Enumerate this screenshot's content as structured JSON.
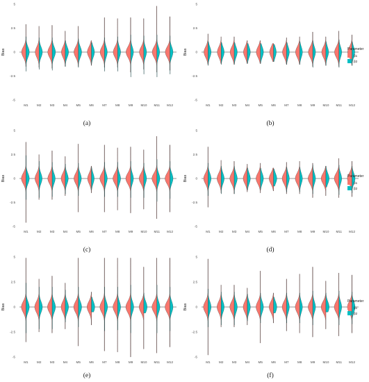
{
  "colors": {
    "b1": "#F8766D",
    "b2": "#00BFC4"
  },
  "legend": {
    "title": "Parameter",
    "b1": "β1",
    "b2": "β2"
  },
  "captions": [
    "(a)",
    "(b)",
    "(c)",
    "(d)",
    "(e)",
    "(f)"
  ],
  "chart_data": [
    {
      "panel": "(a)",
      "type": "violin",
      "ylabel": "Bias",
      "ylim": [
        -5,
        5
      ],
      "yticks": [
        "5",
        "2.5",
        "0",
        "-2.5",
        "-5"
      ],
      "categories": [
        "M1",
        "M2",
        "M3",
        "M4",
        "M5",
        "M6",
        "M7",
        "M8",
        "M9",
        "M10",
        "M11",
        "M12"
      ],
      "series": [
        {
          "name": "β1",
          "width": [
            0.8,
            0.7,
            0.8,
            0.7,
            0.8,
            0.75,
            0.8,
            0.8,
            0.85,
            0.8,
            0.85,
            0.85
          ],
          "min": [
            -1.5,
            -1.6,
            -1.7,
            -1.5,
            -1.5,
            -1.4,
            -1.6,
            -1.6,
            -2.1,
            -1.8,
            -2.1,
            -1.9
          ],
          "max": [
            2.9,
            2.7,
            2.8,
            2.2,
            2.7,
            1.2,
            3.6,
            3.5,
            3.6,
            3.5,
            4.8,
            3.7
          ]
        },
        {
          "name": "β2",
          "width": [
            0.6,
            0.6,
            0.6,
            0.6,
            0.6,
            0.55,
            0.5,
            0.55,
            0.5,
            0.5,
            0.5,
            0.55
          ],
          "min": [
            -2.0,
            -1.8,
            -1.9,
            -1.5,
            -1.6,
            -1.3,
            -2.0,
            -2.0,
            -2.6,
            -2.3,
            -2.6,
            -2.3
          ],
          "max": [
            1.6,
            1.5,
            1.5,
            1.2,
            1.4,
            1.0,
            1.5,
            1.6,
            1.8,
            1.7,
            1.8,
            1.7
          ]
        }
      ]
    },
    {
      "panel": "(b)",
      "type": "violin",
      "ylabel": "Bias",
      "ylim": [
        -5,
        5
      ],
      "yticks": [
        "5",
        "2.5",
        "0",
        "-2.5",
        "-5"
      ],
      "categories": [
        "M1",
        "M2",
        "M3",
        "M4",
        "M5",
        "M6",
        "M7",
        "M8",
        "M9",
        "M10",
        "M11",
        "M12"
      ],
      "series": [
        {
          "name": "β1",
          "width": [
            0.75,
            0.7,
            0.75,
            0.7,
            0.75,
            0.7,
            0.75,
            0.75,
            0.8,
            0.75,
            0.8,
            0.8
          ],
          "min": [
            -1.3,
            -1.2,
            -1.3,
            -1.2,
            -1.2,
            -1.0,
            -1.3,
            -1.3,
            -1.5,
            -1.4,
            -1.5,
            -1.4
          ],
          "max": [
            1.9,
            1.6,
            1.6,
            1.2,
            1.2,
            0.9,
            1.5,
            1.6,
            2.1,
            1.6,
            2.2,
            1.8
          ]
        },
        {
          "name": "β2",
          "width": [
            0.55,
            0.55,
            0.55,
            0.55,
            0.55,
            0.5,
            0.5,
            0.5,
            0.5,
            0.5,
            0.5,
            0.5
          ],
          "min": [
            -1.4,
            -1.3,
            -1.3,
            -1.2,
            -1.2,
            -1.0,
            -1.3,
            -1.3,
            -1.6,
            -1.4,
            -1.6,
            -1.4
          ],
          "max": [
            1.1,
            1.0,
            1.0,
            0.9,
            0.9,
            0.8,
            1.0,
            1.1,
            1.2,
            1.1,
            1.3,
            1.1
          ]
        }
      ]
    },
    {
      "panel": "(c)",
      "type": "violin",
      "ylabel": "Bias",
      "ylim": [
        -5,
        5
      ],
      "yticks": [
        "5",
        "2.5",
        "0",
        "-2.5",
        "-5"
      ],
      "categories": [
        "M1",
        "M2",
        "M3",
        "M4",
        "M5",
        "M6",
        "M7",
        "M8",
        "M9",
        "M10",
        "M11",
        "M12"
      ],
      "series": [
        {
          "name": "β1",
          "width": [
            0.85,
            0.75,
            0.8,
            0.75,
            0.8,
            0.7,
            0.85,
            0.85,
            0.9,
            0.85,
            0.9,
            0.9
          ],
          "min": [
            -4.6,
            -2.2,
            -2.2,
            -1.8,
            -3.5,
            -1.5,
            -3.5,
            -3.3,
            -3.6,
            -3.2,
            -4.2,
            -3.5
          ],
          "max": [
            3.8,
            2.5,
            2.9,
            2.3,
            3.6,
            1.3,
            3.5,
            3.2,
            3.3,
            3.0,
            4.4,
            3.5
          ]
        },
        {
          "name": "β2",
          "width": [
            0.6,
            0.55,
            0.55,
            0.55,
            0.55,
            0.5,
            0.5,
            0.55,
            0.5,
            0.5,
            0.55,
            0.55
          ],
          "min": [
            -2.2,
            -2.0,
            -1.9,
            -1.6,
            -1.8,
            -1.2,
            -1.9,
            -1.9,
            -2.0,
            -2.0,
            -2.4,
            -2.1
          ],
          "max": [
            2.4,
            1.8,
            1.7,
            1.5,
            1.6,
            1.2,
            1.7,
            1.7,
            1.8,
            1.6,
            2.0,
            1.8
          ]
        }
      ]
    },
    {
      "panel": "(d)",
      "type": "violin",
      "ylabel": "Bias",
      "ylim": [
        -5,
        5
      ],
      "yticks": [
        "5",
        "2.5",
        "0",
        "-2.5",
        "-5"
      ],
      "categories": [
        "M1",
        "M2",
        "M3",
        "M4",
        "M5",
        "M6",
        "M7",
        "M8",
        "M9",
        "M10",
        "M11",
        "M12"
      ],
      "series": [
        {
          "name": "β1",
          "width": [
            0.8,
            0.75,
            0.8,
            0.75,
            0.8,
            0.8,
            0.8,
            0.8,
            0.85,
            0.85,
            0.85,
            0.85
          ],
          "min": [
            -3.0,
            -1.5,
            -1.6,
            -1.4,
            -1.5,
            -1.3,
            -1.6,
            -1.6,
            -2.0,
            -1.8,
            -2.0,
            -1.9
          ],
          "max": [
            3.3,
            1.9,
            1.8,
            1.5,
            1.6,
            1.1,
            1.7,
            1.8,
            1.6,
            1.3,
            2.1,
            1.8
          ]
        },
        {
          "name": "β2",
          "width": [
            0.55,
            0.55,
            0.55,
            0.55,
            0.55,
            0.6,
            0.5,
            0.5,
            0.5,
            0.6,
            0.5,
            0.55
          ],
          "min": [
            -1.8,
            -1.6,
            -1.6,
            -1.2,
            -1.2,
            -0.8,
            -1.4,
            -1.4,
            -1.6,
            -0.9,
            -1.7,
            -1.5
          ],
          "max": [
            1.6,
            1.3,
            1.3,
            1.1,
            1.1,
            1.0,
            1.2,
            1.2,
            1.4,
            1.3,
            1.4,
            1.3
          ]
        }
      ]
    },
    {
      "panel": "(e)",
      "type": "violin",
      "ylabel": "Bias",
      "ylim": [
        -5,
        5
      ],
      "yticks": [
        "5",
        "2.5",
        "0",
        "-2.5",
        "-5"
      ],
      "categories": [
        "M1",
        "M2",
        "M3",
        "M4",
        "M5",
        "M6",
        "M7",
        "M8",
        "M9",
        "M10",
        "M11",
        "M12"
      ],
      "series": [
        {
          "name": "β1",
          "width": [
            0.85,
            0.8,
            0.85,
            0.75,
            0.85,
            0.8,
            0.85,
            0.85,
            0.9,
            0.85,
            0.9,
            0.9
          ],
          "min": [
            -3.5,
            -2.5,
            -2.6,
            -2.2,
            -3.9,
            -1.8,
            -4.4,
            -4.5,
            -5.0,
            -4.2,
            -4.6,
            -4.0
          ],
          "max": [
            4.9,
            2.8,
            3.1,
            2.4,
            4.9,
            1.5,
            4.9,
            4.9,
            4.9,
            4.0,
            4.9,
            4.9
          ]
        },
        {
          "name": "β2",
          "width": [
            0.6,
            0.6,
            0.6,
            0.6,
            0.6,
            0.6,
            0.55,
            0.55,
            0.55,
            0.6,
            0.55,
            0.55
          ],
          "min": [
            -2.6,
            -2.2,
            -2.2,
            -1.5,
            -2.0,
            -0.5,
            -2.4,
            -2.3,
            -2.6,
            -0.6,
            -2.6,
            -2.4
          ],
          "max": [
            2.4,
            2.0,
            2.0,
            1.7,
            2.0,
            1.0,
            2.0,
            2.0,
            2.2,
            1.4,
            2.2,
            2.0
          ]
        }
      ]
    },
    {
      "panel": "(f)",
      "type": "violin",
      "ylabel": "Bias",
      "ylim": [
        -5,
        5
      ],
      "yticks": [
        "5",
        "2.5",
        "0",
        "-2.5",
        "-5"
      ],
      "categories": [
        "M1",
        "M2",
        "M3",
        "M4",
        "M5",
        "M6",
        "M7",
        "M8",
        "M9",
        "M10",
        "M11",
        "M12"
      ],
      "series": [
        {
          "name": "β1",
          "width": [
            0.85,
            0.75,
            0.8,
            0.75,
            0.8,
            0.8,
            0.8,
            0.8,
            0.85,
            0.85,
            0.85,
            0.85
          ],
          "min": [
            -4.8,
            -2.0,
            -2.0,
            -1.8,
            -3.6,
            -1.6,
            -2.4,
            -2.6,
            -3.0,
            -2.2,
            -2.9,
            -2.6
          ],
          "max": [
            4.8,
            2.2,
            2.2,
            1.9,
            3.6,
            1.4,
            2.8,
            3.3,
            4.0,
            2.6,
            3.4,
            3.2
          ]
        },
        {
          "name": "β2",
          "width": [
            0.55,
            0.55,
            0.55,
            0.55,
            0.55,
            0.6,
            0.5,
            0.5,
            0.5,
            0.6,
            0.5,
            0.55
          ],
          "min": [
            -2.0,
            -1.8,
            -1.8,
            -1.4,
            -1.6,
            -0.6,
            -1.6,
            -1.6,
            -1.8,
            -0.5,
            -1.8,
            -1.7
          ],
          "max": [
            1.8,
            1.5,
            1.5,
            1.3,
            1.4,
            1.0,
            1.4,
            1.4,
            1.6,
            1.4,
            1.6,
            1.5
          ]
        }
      ]
    }
  ]
}
